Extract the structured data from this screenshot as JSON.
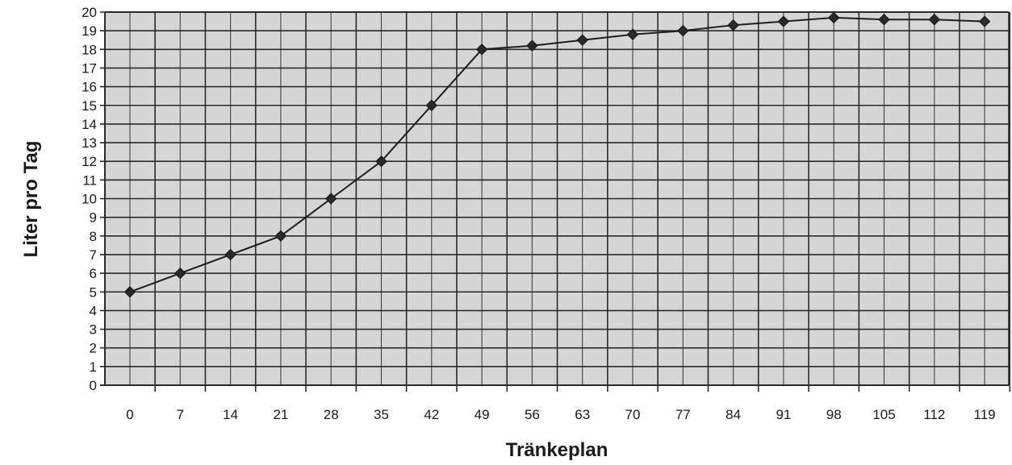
{
  "chart_data": {
    "type": "line",
    "title": "",
    "xlabel": "Tränkeplan",
    "ylabel": "Liter pro Tag",
    "categories": [
      "0",
      "7",
      "14",
      "21",
      "28",
      "35",
      "42",
      "49",
      "56",
      "63",
      "70",
      "77",
      "84",
      "91",
      "98",
      "105",
      "112",
      "119"
    ],
    "series": [
      {
        "values": [
          5,
          6,
          7,
          8,
          10,
          12,
          15,
          18,
          18.2,
          18.5,
          18.8,
          19,
          19.3,
          19.5,
          19.7,
          19.6,
          19.6,
          19.5
        ]
      }
    ],
    "ylim": [
      0,
      20
    ],
    "yticks": [
      0,
      1,
      2,
      3,
      4,
      5,
      6,
      7,
      8,
      9,
      10,
      11,
      12,
      13,
      14,
      15,
      16,
      17,
      18,
      19,
      20
    ],
    "grid": true,
    "legend": "none",
    "marker": "diamond"
  },
  "colors": {
    "plot_background": "#d6d6d6",
    "grid": "#2a2a2a",
    "line": "#1e1e1e",
    "marker": "#2a2a2a",
    "text": "#1a1a1a"
  }
}
